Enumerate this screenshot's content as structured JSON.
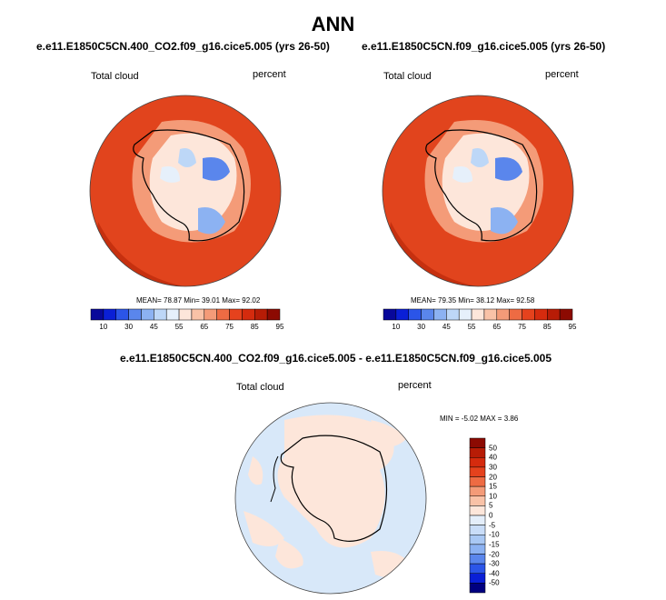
{
  "title": "ANN",
  "panels": [
    {
      "case": "e.e11.E1850C5CN.400_CO2.f09_g16.cice5.005 (yrs 26-50)",
      "variable": "Total cloud",
      "units": "percent",
      "stats": "MEAN= 78.87  Min= 39.01  Max= 92.02",
      "colorbar_labels": [
        "10",
        "30",
        "45",
        "55",
        "65",
        "75",
        "85",
        "95"
      ]
    },
    {
      "case": "e.e11.E1850C5CN.f09_g16.cice5.005 (yrs 26-50)",
      "variable": "Total cloud",
      "units": "percent",
      "stats": "MEAN= 79.35  Min= 38.12  Max= 92.58",
      "colorbar_labels": [
        "10",
        "30",
        "45",
        "55",
        "65",
        "75",
        "85",
        "95"
      ]
    }
  ],
  "difference": {
    "case": "e.e11.E1850C5CN.400_CO2.f09_g16.cice5.005 - e.e11.E1850C5CN.f09_g16.cice5.005",
    "variable": "Total cloud",
    "units": "percent",
    "stats": "MIN =  -5.02 MAX =   3.86",
    "colorbar_labels": [
      "50",
      "40",
      "30",
      "20",
      "15",
      "10",
      "5",
      "0",
      "-5",
      "-10",
      "-15",
      "-20",
      "-30",
      "-40",
      "-50"
    ]
  },
  "colors": {
    "abs_scale": [
      "#08089a",
      "#0a1fd6",
      "#2b55e8",
      "#5a86ec",
      "#8cb2f2",
      "#bdd7f7",
      "#e6f0fb",
      "#fde6da",
      "#f9c2a7",
      "#f49b78",
      "#ee6b43",
      "#e5421d",
      "#d52b0e",
      "#b71c06",
      "#8c0a02"
    ],
    "diff_scale": [
      "#000080",
      "#0a1fd6",
      "#2b55e8",
      "#5a86ec",
      "#8cb2f2",
      "#a9c8f4",
      "#c9ddf8",
      "#e4eefa",
      "#fde6da",
      "#f9c2a7",
      "#f49b78",
      "#ee6b43",
      "#e5421d",
      "#d52b0e",
      "#b71c06",
      "#8c0a02"
    ],
    "ocean_high": "#e1441d",
    "diff_ocean": "#d8e8f9",
    "diff_land": "#fde6da"
  }
}
